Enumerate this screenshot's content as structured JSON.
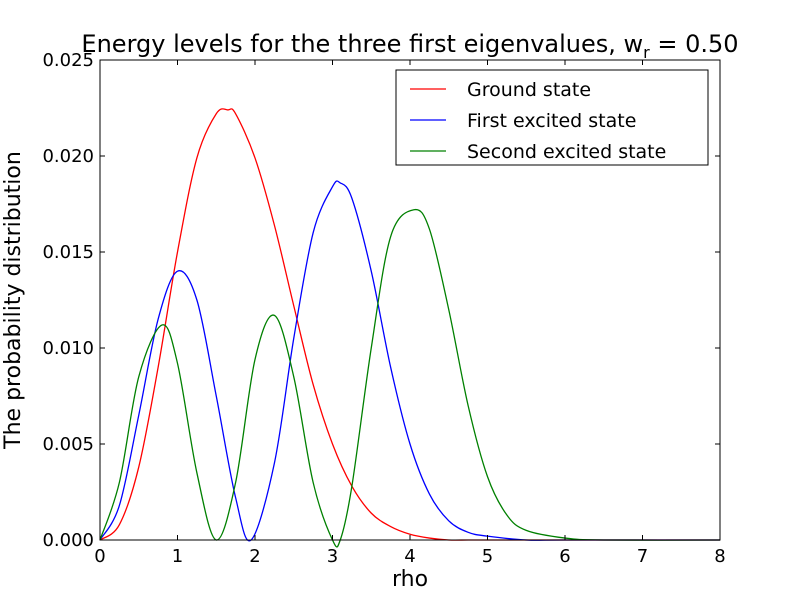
{
  "chart_data": {
    "type": "line",
    "title": "Energy levels for the three first eigenvalues, w",
    "title_subscript": "r",
    "title_suffix": " = 0.50",
    "xlabel": "rho",
    "ylabel": "The probability distribution",
    "xlim": [
      0,
      8
    ],
    "ylim": [
      0,
      0.025
    ],
    "x_ticks": [
      "0",
      "1",
      "2",
      "3",
      "4",
      "5",
      "6",
      "7",
      "8"
    ],
    "y_ticks": [
      "0.000",
      "0.005",
      "0.010",
      "0.015",
      "0.020",
      "0.025"
    ],
    "grid": false,
    "legend_position": "top-right",
    "series": [
      {
        "name": "Ground state",
        "color": "#ff0000",
        "x": [
          0,
          0.25,
          0.5,
          0.75,
          1.0,
          1.25,
          1.5,
          1.65,
          1.75,
          2.0,
          2.25,
          2.5,
          2.75,
          3.0,
          3.25,
          3.5,
          3.75,
          4.0,
          4.25,
          4.5,
          4.75,
          5.0,
          5.5,
          6.0,
          8.0
        ],
        "y": [
          0,
          0.0008,
          0.0038,
          0.009,
          0.015,
          0.0199,
          0.0222,
          0.0224,
          0.0222,
          0.0199,
          0.0164,
          0.0122,
          0.0081,
          0.005,
          0.0028,
          0.0014,
          0.0007,
          0.0003,
          0.0001,
          0.0,
          0.0,
          0.0,
          0.0,
          0.0,
          0.0
        ]
      },
      {
        "name": "First excited state",
        "color": "#0000ff",
        "x": [
          0,
          0.25,
          0.5,
          0.75,
          1.0,
          1.25,
          1.5,
          1.75,
          1.95,
          2.25,
          2.5,
          2.75,
          3.0,
          3.1,
          3.25,
          3.5,
          3.75,
          4.0,
          4.25,
          4.5,
          4.75,
          5.0,
          5.5,
          6.0,
          8.0
        ],
        "y": [
          0,
          0.0018,
          0.0065,
          0.0115,
          0.014,
          0.0125,
          0.0075,
          0.0022,
          0.0,
          0.004,
          0.0105,
          0.016,
          0.0184,
          0.0186,
          0.0178,
          0.014,
          0.009,
          0.005,
          0.0024,
          0.001,
          0.0004,
          0.0002,
          0.0,
          0.0,
          0.0
        ]
      },
      {
        "name": "Second excited state",
        "color": "#008000",
        "x": [
          0,
          0.25,
          0.5,
          0.8,
          1.0,
          1.25,
          1.5,
          1.75,
          2.0,
          2.25,
          2.5,
          2.75,
          3.0,
          3.1,
          3.25,
          3.5,
          3.75,
          4.05,
          4.25,
          4.5,
          4.75,
          5.0,
          5.25,
          5.5,
          6.0,
          6.5,
          8.0
        ],
        "y": [
          0,
          0.003,
          0.0085,
          0.0112,
          0.0092,
          0.0035,
          0.0,
          0.003,
          0.0094,
          0.0117,
          0.0085,
          0.003,
          0.0,
          0.0,
          0.0028,
          0.01,
          0.0158,
          0.0172,
          0.0162,
          0.012,
          0.007,
          0.0033,
          0.0013,
          0.0005,
          0.0001,
          0.0,
          0.0
        ]
      }
    ]
  }
}
